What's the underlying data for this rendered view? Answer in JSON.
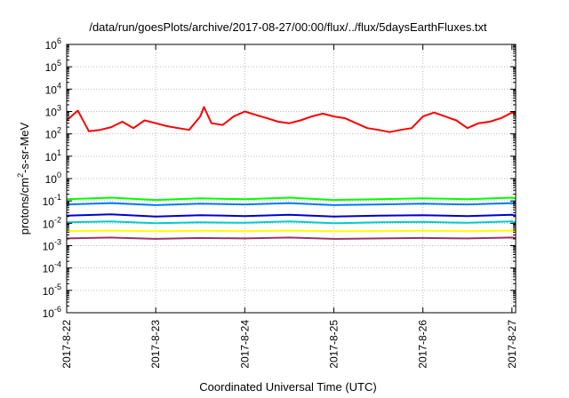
{
  "chart_data": {
    "type": "line",
    "title": "/data/run/goesPlots/archive/2017-08-27/00:00/flux/../flux/5daysEarthFluxes.txt",
    "xlabel": "Coordinated Universal Time (UTC)",
    "ylabel": "protons/cm2-s-sr-MeV",
    "ylabel_parts": {
      "base": "protons/cm",
      "sup": "2",
      "rest": "-s-sr-MeV"
    },
    "x_ticks": [
      "2017-8-22",
      "2017-8-23",
      "2017-8-24",
      "2017-8-25",
      "2017-8-26",
      "2017-8-27"
    ],
    "xlim": [
      "2017-08-22 00:00",
      "2017-08-27 01:00"
    ],
    "y_scale": "log",
    "ylim": [
      1e-06,
      1000000.0
    ],
    "y_tick_exponents": [
      -6,
      -5,
      -4,
      -3,
      -2,
      -1,
      0,
      1,
      2,
      3,
      4,
      5,
      6
    ],
    "y_tick_base": "10",
    "grid": true,
    "legend": "none",
    "series": [
      {
        "color": "#ff0000",
        "x": [
          "2017-08-22 00:00",
          "2017-08-22 03:00",
          "2017-08-22 06:00",
          "2017-08-22 09:00",
          "2017-08-22 12:00",
          "2017-08-22 15:00",
          "2017-08-22 18:00",
          "2017-08-22 21:00",
          "2017-08-23 00:00",
          "2017-08-23 03:00",
          "2017-08-23 06:00",
          "2017-08-23 09:00",
          "2017-08-23 12:00",
          "2017-08-23 13:00",
          "2017-08-23 15:00",
          "2017-08-23 18:00",
          "2017-08-23 21:00",
          "2017-08-24 00:00",
          "2017-08-24 03:00",
          "2017-08-24 06:00",
          "2017-08-24 09:00",
          "2017-08-24 12:00",
          "2017-08-24 15:00",
          "2017-08-24 18:00",
          "2017-08-24 21:00",
          "2017-08-25 00:00",
          "2017-08-25 03:00",
          "2017-08-25 06:00",
          "2017-08-25 09:00",
          "2017-08-25 12:00",
          "2017-08-25 15:00",
          "2017-08-25 18:00",
          "2017-08-25 21:00",
          "2017-08-26 00:00",
          "2017-08-26 03:00",
          "2017-08-26 06:00",
          "2017-08-26 09:00",
          "2017-08-26 12:00",
          "2017-08-26 15:00",
          "2017-08-26 18:00",
          "2017-08-26 21:00",
          "2017-08-27 00:00",
          "2017-08-27 01:00"
        ],
        "values": [
          400,
          1100,
          130,
          150,
          200,
          350,
          180,
          400,
          300,
          220,
          180,
          150,
          600,
          1600,
          300,
          250,
          600,
          1000,
          700,
          500,
          350,
          300,
          400,
          600,
          800,
          600,
          500,
          300,
          180,
          150,
          120,
          150,
          180,
          600,
          900,
          600,
          400,
          180,
          300,
          350,
          500,
          900,
          800
        ]
      },
      {
        "color": "#00ff00",
        "x": [
          "2017-08-22 00:00",
          "2017-08-22 12:00",
          "2017-08-23 00:00",
          "2017-08-23 12:00",
          "2017-08-24 00:00",
          "2017-08-24 12:00",
          "2017-08-25 00:00",
          "2017-08-25 12:00",
          "2017-08-26 00:00",
          "2017-08-26 12:00",
          "2017-08-27 00:00",
          "2017-08-27 01:00"
        ],
        "values": [
          0.12,
          0.14,
          0.11,
          0.13,
          0.12,
          0.14,
          0.11,
          0.12,
          0.13,
          0.12,
          0.14,
          0.13
        ]
      },
      {
        "color": "#0077ff",
        "x": [
          "2017-08-22 00:00",
          "2017-08-22 12:00",
          "2017-08-23 00:00",
          "2017-08-23 12:00",
          "2017-08-24 00:00",
          "2017-08-24 12:00",
          "2017-08-25 00:00",
          "2017-08-25 12:00",
          "2017-08-26 00:00",
          "2017-08-26 12:00",
          "2017-08-27 00:00",
          "2017-08-27 01:00"
        ],
        "values": [
          0.07,
          0.08,
          0.065,
          0.075,
          0.07,
          0.08,
          0.065,
          0.07,
          0.075,
          0.07,
          0.08,
          0.075
        ]
      },
      {
        "color": "#0000cc",
        "x": [
          "2017-08-22 00:00",
          "2017-08-22 12:00",
          "2017-08-23 00:00",
          "2017-08-23 12:00",
          "2017-08-24 00:00",
          "2017-08-24 12:00",
          "2017-08-25 00:00",
          "2017-08-25 12:00",
          "2017-08-26 00:00",
          "2017-08-26 12:00",
          "2017-08-27 00:00",
          "2017-08-27 01:00"
        ],
        "values": [
          0.022,
          0.025,
          0.02,
          0.023,
          0.021,
          0.024,
          0.02,
          0.022,
          0.023,
          0.021,
          0.024,
          0.022
        ]
      },
      {
        "color": "#00cccc",
        "x": [
          "2017-08-22 00:00",
          "2017-08-22 12:00",
          "2017-08-23 00:00",
          "2017-08-23 12:00",
          "2017-08-24 00:00",
          "2017-08-24 12:00",
          "2017-08-25 00:00",
          "2017-08-25 12:00",
          "2017-08-26 00:00",
          "2017-08-26 12:00",
          "2017-08-27 00:00",
          "2017-08-27 01:00"
        ],
        "values": [
          0.011,
          0.012,
          0.01,
          0.011,
          0.0105,
          0.012,
          0.01,
          0.011,
          0.0115,
          0.0105,
          0.012,
          0.011
        ]
      },
      {
        "color": "#ffff00",
        "x": [
          "2017-08-22 00:00",
          "2017-08-22 12:00",
          "2017-08-23 00:00",
          "2017-08-23 12:00",
          "2017-08-24 00:00",
          "2017-08-24 12:00",
          "2017-08-25 00:00",
          "2017-08-25 12:00",
          "2017-08-26 00:00",
          "2017-08-26 12:00",
          "2017-08-27 00:00",
          "2017-08-27 01:00"
        ],
        "values": [
          0.0045,
          0.0047,
          0.0044,
          0.0046,
          0.0045,
          0.0047,
          0.0044,
          0.0045,
          0.0046,
          0.0045,
          0.0047,
          0.0046
        ]
      },
      {
        "color": "#993366",
        "x": [
          "2017-08-22 00:00",
          "2017-08-22 12:00",
          "2017-08-23 00:00",
          "2017-08-23 12:00",
          "2017-08-24 00:00",
          "2017-08-24 12:00",
          "2017-08-25 00:00",
          "2017-08-25 12:00",
          "2017-08-26 00:00",
          "2017-08-26 12:00",
          "2017-08-27 00:00",
          "2017-08-27 01:00"
        ],
        "values": [
          0.0021,
          0.0023,
          0.002,
          0.0022,
          0.0021,
          0.0023,
          0.002,
          0.0021,
          0.0022,
          0.0021,
          0.0023,
          0.0022
        ]
      }
    ]
  }
}
